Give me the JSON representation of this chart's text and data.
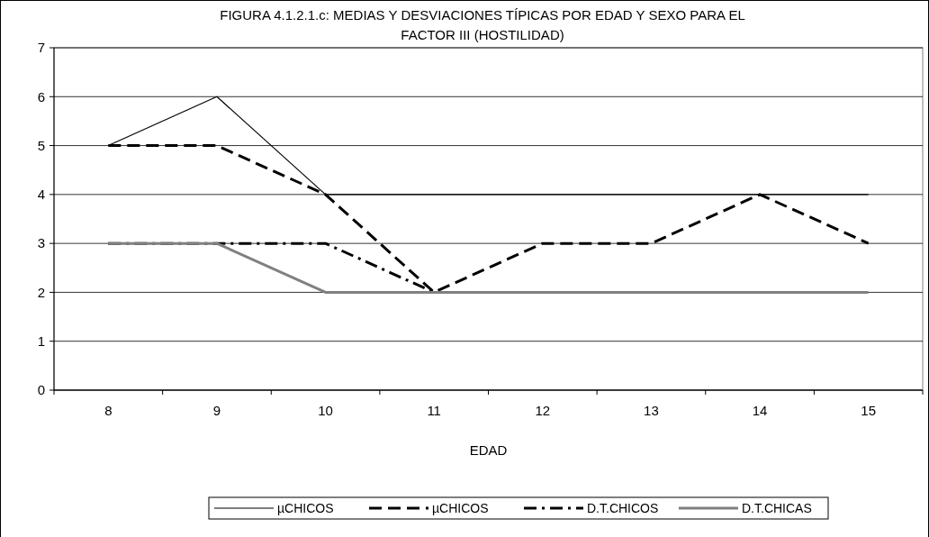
{
  "chart_data": {
    "type": "line",
    "title": "FIGURA 4.1.2.1.c: MEDIAS Y DESVIACIONES TÍPICAS POR EDAD Y SEXO PARA EL FACTOR III (HOSTILIDAD)",
    "xlabel": "EDAD",
    "categories": [
      "8",
      "9",
      "10",
      "11",
      "12",
      "13",
      "14",
      "15"
    ],
    "ylim": [
      0,
      7
    ],
    "yticks": [
      0,
      1,
      2,
      3,
      4,
      5,
      6,
      7
    ],
    "grid": "y",
    "legend": "bottom",
    "marker": "none",
    "series": [
      {
        "name": "µCHICOS",
        "color": "#000000",
        "line_style": "solid",
        "values": [
          5,
          6,
          4,
          4,
          4,
          4,
          4,
          4
        ]
      },
      {
        "name": "µCHICOS",
        "color": "#000000",
        "line_style": "dashed",
        "values": [
          5,
          5,
          4,
          2,
          3,
          3,
          4,
          3
        ]
      },
      {
        "name": "D.T.CHICOS",
        "color": "#000000",
        "line_style": "dashdot",
        "values": [
          3,
          3,
          3,
          2,
          null,
          null,
          null,
          null
        ]
      },
      {
        "name": "D.T.CHICAS",
        "color": "#808080",
        "line_style": "solid",
        "values": [
          3,
          3,
          2,
          2,
          2,
          2,
          2,
          2
        ]
      }
    ]
  }
}
